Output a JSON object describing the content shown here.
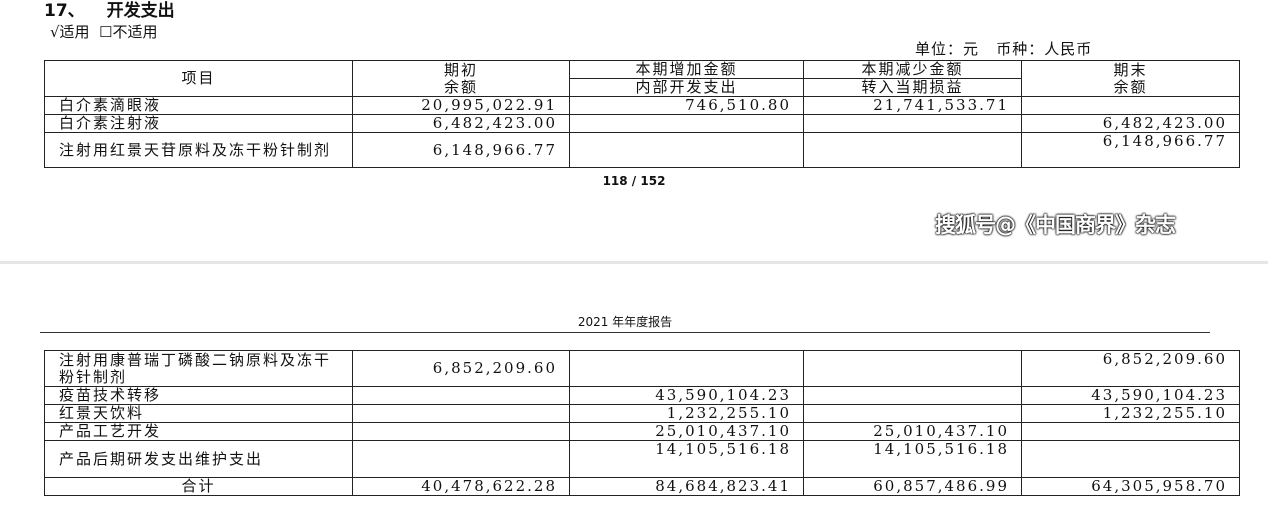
{
  "section": {
    "number": "17、",
    "title": "开发支出",
    "applicable": "√适用",
    "not_applicable": "☐不适用"
  },
  "unit": "单位：元   币种：人民币",
  "headers": {
    "item": "项目",
    "opening_1": "期初",
    "opening_2": "余额",
    "increase": "本期增加金额",
    "internal_rd": "内部开发支出",
    "decrease": "本期减少金额",
    "to_pnl": "转入当期损益",
    "closing_1": "期末",
    "closing_2": "余额"
  },
  "rows_page1": [
    {
      "item": "白介素滴眼液",
      "opening": "20,995,022.91",
      "internal": "746,510.80",
      "to_pnl": "21,741,533.71",
      "closing": ""
    },
    {
      "item": "白介素注射液",
      "opening": "6,482,423.00",
      "internal": "",
      "to_pnl": "",
      "closing": "6,482,423.00"
    },
    {
      "item": "注射用红景天苷原料及冻干粉针制剂",
      "opening": "6,148,966.77",
      "internal": "",
      "to_pnl": "",
      "closing": "6,148,966.77"
    }
  ],
  "page_number": "118 / 152",
  "running_header": "2021 年年度报告",
  "rows_page2": [
    {
      "item": "注射用康普瑞丁磷酸二钠原料及冻干粉针制剂",
      "opening": "6,852,209.60",
      "internal": "",
      "to_pnl": "",
      "closing": "6,852,209.60"
    },
    {
      "item": "疫苗技术转移",
      "opening": "",
      "internal": "43,590,104.23",
      "to_pnl": "",
      "closing": "43,590,104.23"
    },
    {
      "item": "红景天饮料",
      "opening": "",
      "internal": "1,232,255.10",
      "to_pnl": "",
      "closing": "1,232,255.10"
    },
    {
      "item": "产品工艺开发",
      "opening": "",
      "internal": "25,010,437.10",
      "to_pnl": "25,010,437.10",
      "closing": ""
    },
    {
      "item": "产品后期研发支出维护支出",
      "opening": "",
      "internal": "14,105,516.18",
      "to_pnl": "14,105,516.18",
      "closing": ""
    }
  ],
  "total": {
    "item": "合计",
    "opening": "40,478,622.28",
    "internal": "84,684,823.41",
    "to_pnl": "60,857,486.99",
    "closing": "64,305,958.70"
  },
  "watermark": "搜狐号@《中国商界》杂志"
}
